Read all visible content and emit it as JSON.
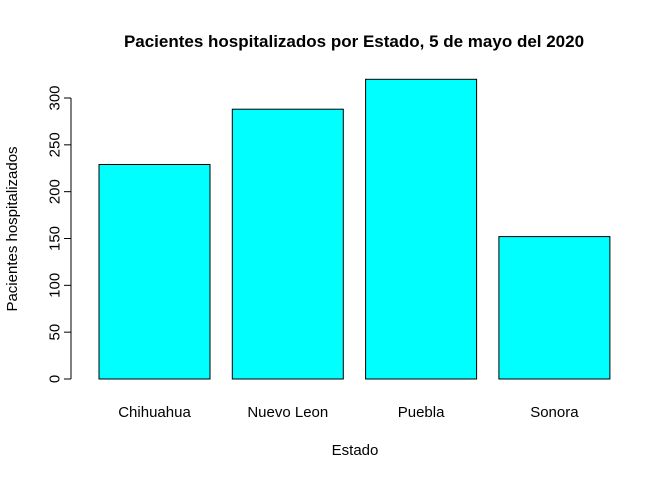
{
  "chart_data": {
    "type": "bar",
    "title": "Pacientes hospitalizados por Estado, 5 de mayo del 2020",
    "xlabel": "Estado",
    "ylabel": "Pacientes hospitalizados",
    "categories": [
      "Chihuahua",
      "Nuevo Leon",
      "Puebla",
      "Sonora"
    ],
    "values": [
      229,
      288,
      320,
      152
    ],
    "ylim": [
      0,
      300
    ],
    "yticks": [
      0,
      50,
      100,
      150,
      200,
      250,
      300
    ],
    "ytick_labels": [
      "0",
      "50",
      "100",
      "150",
      "200",
      "250",
      "300"
    ],
    "grid": false,
    "legend": "none",
    "bar_color": "#00FFFF",
    "bar_border_color": "#000000"
  }
}
